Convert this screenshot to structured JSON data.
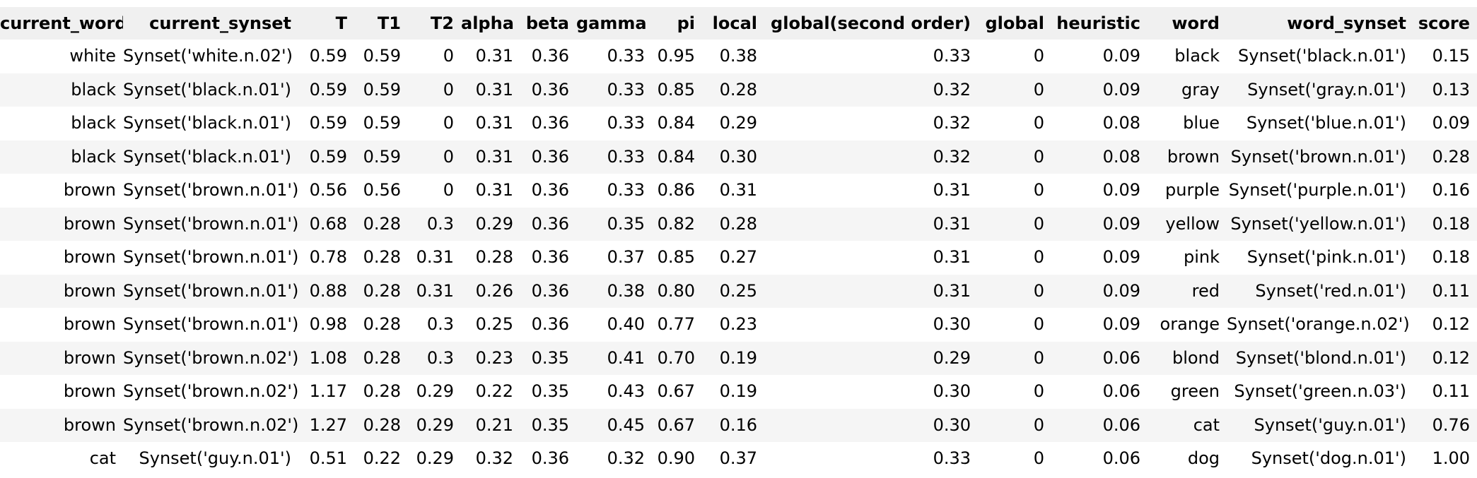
{
  "table": {
    "columns": [
      "current_word",
      "current_synset",
      "T",
      "T1",
      "T2",
      "alpha",
      "beta",
      "gamma",
      "pi",
      "local",
      "global(second order)",
      "global",
      "heuristic",
      "word",
      "word_synset",
      "score"
    ],
    "rows": [
      [
        "white",
        "Synset('white.n.02')",
        "0.59",
        "0.59",
        "0",
        "0.31",
        "0.36",
        "0.33",
        "0.95",
        "0.38",
        "0.33",
        "0",
        "0.09",
        "black",
        "Synset('black.n.01')",
        "0.15"
      ],
      [
        "black",
        "Synset('black.n.01')",
        "0.59",
        "0.59",
        "0",
        "0.31",
        "0.36",
        "0.33",
        "0.85",
        "0.28",
        "0.32",
        "0",
        "0.09",
        "gray",
        "Synset('gray.n.01')",
        "0.13"
      ],
      [
        "black",
        "Synset('black.n.01')",
        "0.59",
        "0.59",
        "0",
        "0.31",
        "0.36",
        "0.33",
        "0.84",
        "0.29",
        "0.32",
        "0",
        "0.08",
        "blue",
        "Synset('blue.n.01')",
        "0.09"
      ],
      [
        "black",
        "Synset('black.n.01')",
        "0.59",
        "0.59",
        "0",
        "0.31",
        "0.36",
        "0.33",
        "0.84",
        "0.30",
        "0.32",
        "0",
        "0.08",
        "brown",
        "Synset('brown.n.01')",
        "0.28"
      ],
      [
        "brown",
        "Synset('brown.n.01')",
        "0.56",
        "0.56",
        "0",
        "0.31",
        "0.36",
        "0.33",
        "0.86",
        "0.31",
        "0.31",
        "0",
        "0.09",
        "purple",
        "Synset('purple.n.01')",
        "0.16"
      ],
      [
        "brown",
        "Synset('brown.n.01')",
        "0.68",
        "0.28",
        "0.3",
        "0.29",
        "0.36",
        "0.35",
        "0.82",
        "0.28",
        "0.31",
        "0",
        "0.09",
        "yellow",
        "Synset('yellow.n.01')",
        "0.18"
      ],
      [
        "brown",
        "Synset('brown.n.01')",
        "0.78",
        "0.28",
        "0.31",
        "0.28",
        "0.36",
        "0.37",
        "0.85",
        "0.27",
        "0.31",
        "0",
        "0.09",
        "pink",
        "Synset('pink.n.01')",
        "0.18"
      ],
      [
        "brown",
        "Synset('brown.n.01')",
        "0.88",
        "0.28",
        "0.31",
        "0.26",
        "0.36",
        "0.38",
        "0.80",
        "0.25",
        "0.31",
        "0",
        "0.09",
        "red",
        "Synset('red.n.01')",
        "0.11"
      ],
      [
        "brown",
        "Synset('brown.n.01')",
        "0.98",
        "0.28",
        "0.3",
        "0.25",
        "0.36",
        "0.40",
        "0.77",
        "0.23",
        "0.30",
        "0",
        "0.09",
        "orange",
        "Synset('orange.n.02')",
        "0.12"
      ],
      [
        "brown",
        "Synset('brown.n.02')",
        "1.08",
        "0.28",
        "0.3",
        "0.23",
        "0.35",
        "0.41",
        "0.70",
        "0.19",
        "0.29",
        "0",
        "0.06",
        "blond",
        "Synset('blond.n.01')",
        "0.12"
      ],
      [
        "brown",
        "Synset('brown.n.02')",
        "1.17",
        "0.28",
        "0.29",
        "0.22",
        "0.35",
        "0.43",
        "0.67",
        "0.19",
        "0.30",
        "0",
        "0.06",
        "green",
        "Synset('green.n.03')",
        "0.11"
      ],
      [
        "brown",
        "Synset('brown.n.02')",
        "1.27",
        "0.28",
        "0.29",
        "0.21",
        "0.35",
        "0.45",
        "0.67",
        "0.16",
        "0.30",
        "0",
        "0.06",
        "cat",
        "Synset('guy.n.01')",
        "0.76"
      ],
      [
        "cat",
        "Synset('guy.n.01')",
        "0.51",
        "0.22",
        "0.29",
        "0.32",
        "0.36",
        "0.32",
        "0.90",
        "0.37",
        "0.33",
        "0",
        "0.06",
        "dog",
        "Synset('dog.n.01')",
        "1.00"
      ]
    ]
  },
  "colors": {
    "header_bg": "#f0f0f0",
    "stripe_bg": "#f5f5f5",
    "row_bg": "#ffffff",
    "text": "#000000"
  }
}
